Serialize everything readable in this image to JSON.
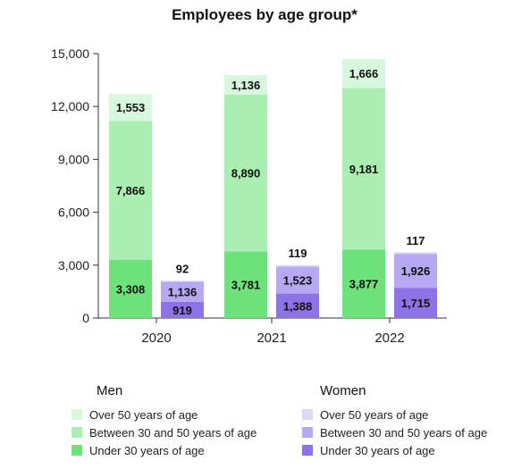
{
  "chart_data": {
    "type": "bar",
    "stacked": true,
    "title": "Employees by age group*",
    "categories": [
      "2020",
      "2021",
      "2022"
    ],
    "ylim": [
      0,
      15000
    ],
    "yticks": [
      0,
      3000,
      6000,
      9000,
      12000,
      15000
    ],
    "ytick_labels": [
      "0",
      "3,000",
      "6,000",
      "9,000",
      "12,000",
      "15,000"
    ],
    "grid": false,
    "legend_position": "bottom",
    "groups": [
      {
        "name": "Men",
        "series": [
          {
            "name": "Under 30 years of age",
            "color": "#6ee27a",
            "values": [
              3308,
              3781,
              3877
            ],
            "labels": [
              "3,308",
              "3,781",
              "3,877"
            ]
          },
          {
            "name": "Between 30 and 50 years of age",
            "color": "#a9efb1",
            "values": [
              7866,
              8890,
              9181
            ],
            "labels": [
              "7,866",
              "8,890",
              "9,181"
            ]
          },
          {
            "name": "Over 50 years of age",
            "color": "#d7f8dc",
            "values": [
              1553,
              1136,
              1666
            ],
            "labels": [
              "1,553",
              "1,136",
              "1,666"
            ]
          }
        ]
      },
      {
        "name": "Women",
        "series": [
          {
            "name": "Under 30 years of age",
            "color": "#8e72e8",
            "values": [
              919,
              1388,
              1715
            ],
            "labels": [
              "919",
              "1,388",
              "1,715"
            ]
          },
          {
            "name": "Between 30 and 50 years of age",
            "color": "#b6a8f2",
            "values": [
              1136,
              1523,
              1926
            ],
            "labels": [
              "1,136",
              "1,523",
              "1,926"
            ]
          },
          {
            "name": "Over 50 years of age",
            "color": "#ddd7f8",
            "values": [
              92,
              119,
              117
            ],
            "labels": [
              "92",
              "119",
              "117"
            ]
          }
        ]
      }
    ]
  }
}
